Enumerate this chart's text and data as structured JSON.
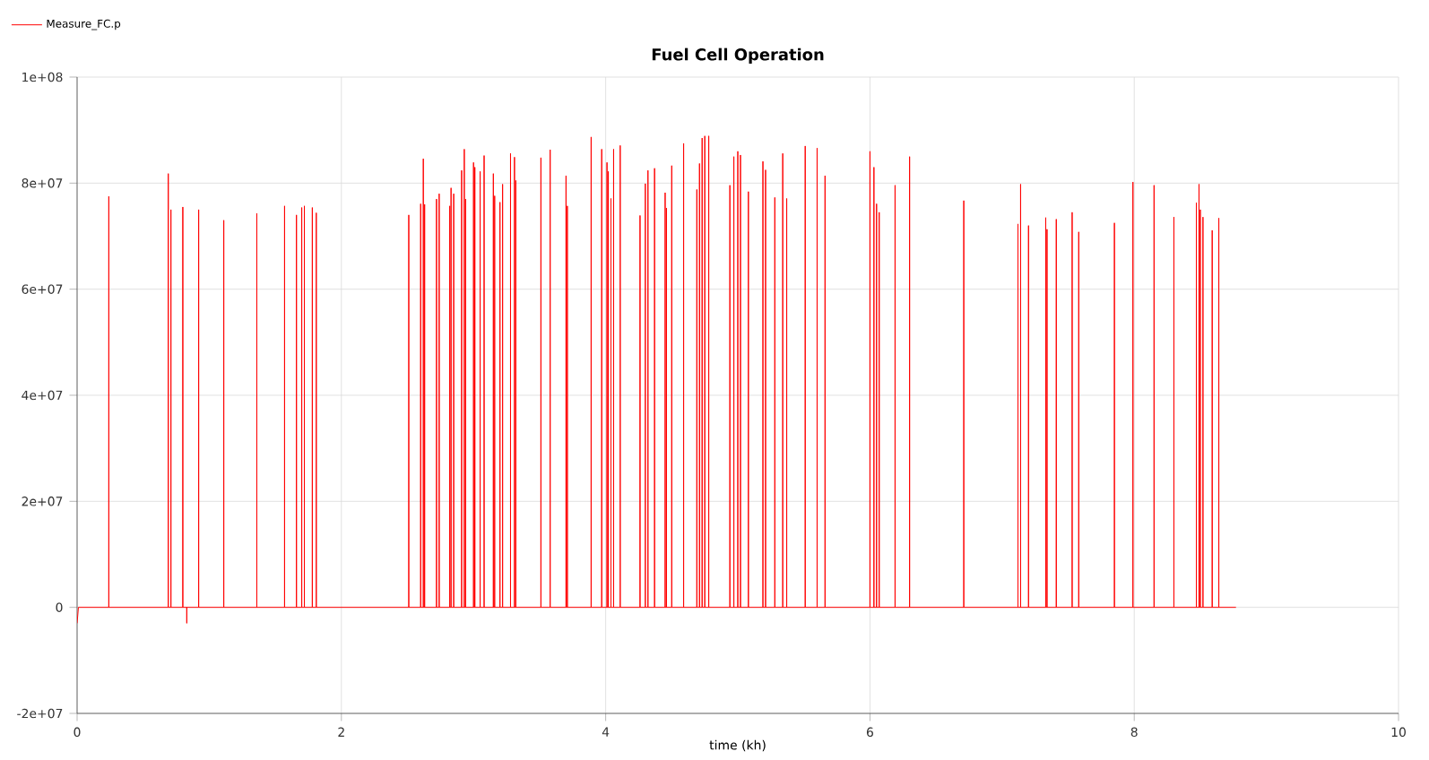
{
  "chart_data": {
    "type": "line",
    "title": "Fuel Cell Operation",
    "xlabel": "time (kh)",
    "xlim": [
      0,
      10
    ],
    "xticks": [
      0,
      2,
      4,
      6,
      8,
      10
    ],
    "ylim": [
      -20000000.0,
      100000000.0
    ],
    "yticks": [
      {
        "value": -20000000.0,
        "label": "-2e+07"
      },
      {
        "value": 0,
        "label": "0"
      },
      {
        "value": 20000000.0,
        "label": "2e+07"
      },
      {
        "value": 40000000.0,
        "label": "4e+07"
      },
      {
        "value": 60000000.0,
        "label": "6e+07"
      },
      {
        "value": 80000000.0,
        "label": "8e+07"
      },
      {
        "value": 100000000.0,
        "label": "1e+08"
      }
    ],
    "grid": true,
    "legend": "top left",
    "marker": "none",
    "line_style": "solid",
    "series": [
      {
        "name": "Measure_FC.p",
        "color": "#ff0000",
        "x": [
          0,
          0.01,
          0.24,
          0.24,
          0.24,
          0.69,
          0.69,
          0.69,
          0.71,
          0.71,
          0.71,
          0.8,
          0.8,
          0.8,
          0.83,
          0.83,
          0.83,
          0.92,
          0.92,
          0.92,
          1.11,
          1.11,
          1.11,
          1.36,
          1.36,
          1.36,
          1.57,
          1.57,
          1.57,
          1.66,
          1.66,
          1.66,
          1.7,
          1.7,
          1.7,
          1.72,
          1.72,
          1.72,
          1.78,
          1.78,
          1.78,
          1.81,
          1.81,
          1.81,
          2.51,
          2.51,
          2.51,
          2.6,
          2.6,
          2.6,
          2.62,
          2.62,
          2.62,
          2.63,
          2.63,
          2.63,
          2.72,
          2.72,
          2.72,
          2.74,
          2.74,
          2.74,
          2.82,
          2.82,
          2.82,
          2.83,
          2.83,
          2.83,
          2.85,
          2.85,
          2.85,
          2.91,
          2.91,
          2.91,
          2.93,
          2.93,
          2.93,
          2.94,
          2.94,
          2.94,
          3.0,
          3.0,
          3.0,
          3.01,
          3.01,
          3.01,
          3.05,
          3.05,
          3.05,
          3.08,
          3.08,
          3.08,
          3.15,
          3.15,
          3.15,
          3.16,
          3.16,
          3.16,
          3.2,
          3.2,
          3.2,
          3.22,
          3.22,
          3.22,
          3.28,
          3.28,
          3.28,
          3.31,
          3.31,
          3.31,
          3.32,
          3.32,
          3.32,
          3.51,
          3.51,
          3.51,
          3.58,
          3.58,
          3.58,
          3.7,
          3.7,
          3.7,
          3.71,
          3.71,
          3.71,
          3.89,
          3.89,
          3.89,
          3.97,
          3.97,
          3.97,
          4.01,
          4.01,
          4.01,
          4.02,
          4.02,
          4.02,
          4.04,
          4.04,
          4.04,
          4.06,
          4.06,
          4.06,
          4.11,
          4.11,
          4.11,
          4.26,
          4.26,
          4.26,
          4.3,
          4.3,
          4.3,
          4.32,
          4.32,
          4.32,
          4.37,
          4.37,
          4.37,
          4.45,
          4.45,
          4.45,
          4.46,
          4.46,
          4.46,
          4.5,
          4.5,
          4.5,
          4.59,
          4.59,
          4.59,
          4.69,
          4.69,
          4.69,
          4.71,
          4.71,
          4.71,
          4.73,
          4.73,
          4.73,
          4.75,
          4.75,
          4.75,
          4.78,
          4.78,
          4.78,
          4.94,
          4.94,
          4.94,
          4.97,
          4.97,
          4.97,
          5.0,
          5.0,
          5.0,
          5.02,
          5.02,
          5.02,
          5.08,
          5.08,
          5.08,
          5.19,
          5.19,
          5.19,
          5.21,
          5.21,
          5.21,
          5.28,
          5.28,
          5.28,
          5.34,
          5.34,
          5.34,
          5.37,
          5.37,
          5.37,
          5.51,
          5.51,
          5.51,
          5.6,
          5.6,
          5.6,
          5.66,
          5.66,
          5.66,
          6.0,
          6.0,
          6.0,
          6.03,
          6.03,
          6.03,
          6.05,
          6.05,
          6.05,
          6.07,
          6.07,
          6.07,
          6.19,
          6.19,
          6.19,
          6.3,
          6.3,
          6.3,
          6.71,
          6.71,
          6.71,
          7.12,
          7.12,
          7.12,
          7.14,
          7.14,
          7.14,
          7.2,
          7.2,
          7.2,
          7.33,
          7.33,
          7.33,
          7.34,
          7.34,
          7.34,
          7.41,
          7.41,
          7.41,
          7.53,
          7.53,
          7.53,
          7.58,
          7.58,
          7.58,
          7.85,
          7.85,
          7.85,
          7.99,
          7.99,
          7.99,
          8.15,
          8.15,
          8.15,
          8.3,
          8.3,
          8.3,
          8.47,
          8.47,
          8.47,
          8.49,
          8.49,
          8.49,
          8.5,
          8.5,
          8.5,
          8.52,
          8.52,
          8.52,
          8.59,
          8.59,
          8.59,
          8.64,
          8.64,
          8.64,
          8.77
        ],
        "values": [
          -3000000.0,
          0,
          0,
          77500000.0,
          0,
          0,
          81800000.0,
          0,
          0,
          75000000.0,
          0,
          0,
          75500000.0,
          0,
          0,
          -3000000.0,
          0,
          0,
          75000000.0,
          0,
          0,
          73000000.0,
          0,
          0,
          74300000.0,
          0,
          0,
          75700000.0,
          0,
          0,
          74000000.0,
          0,
          0,
          75400000.0,
          0,
          0,
          75700000.0,
          0,
          0,
          75400000.0,
          0,
          0,
          74400000.0,
          0,
          0,
          74000000.0,
          0,
          0,
          76100000.0,
          0,
          0,
          84600000.0,
          0,
          0,
          76000000.0,
          0,
          0,
          77000000.0,
          0,
          0,
          78000000.0,
          0,
          0,
          75700000.0,
          0,
          0,
          79100000.0,
          0,
          0,
          78000000.0,
          0,
          0,
          82400000.0,
          0,
          0,
          86400000.0,
          0,
          0,
          77000000.0,
          0,
          0,
          83900000.0,
          0,
          0,
          83000000.0,
          0,
          0,
          82200000.0,
          0,
          0,
          85200000.0,
          0,
          0,
          81800000.0,
          0,
          0,
          77600000.0,
          0,
          0,
          76400000.0,
          0,
          0,
          79800000.0,
          0,
          0,
          85600000.0,
          0,
          0,
          84900000.0,
          0,
          0,
          80500000.0,
          0,
          0,
          84800000.0,
          0,
          0,
          86300000.0,
          0,
          0,
          81400000.0,
          0,
          0,
          75700000.0,
          0,
          0,
          88700000.0,
          0,
          0,
          86400000.0,
          0,
          0,
          83900000.0,
          0,
          0,
          82200000.0,
          0,
          0,
          77100000.0,
          0,
          0,
          86400000.0,
          0,
          0,
          87100000.0,
          0,
          0,
          73900000.0,
          0,
          0,
          79900000.0,
          0,
          0,
          82400000.0,
          0,
          0,
          82800000.0,
          0,
          0,
          78200000.0,
          0,
          0,
          75300000.0,
          0,
          0,
          83300000.0,
          0,
          0,
          87500000.0,
          0,
          0,
          78800000.0,
          0,
          0,
          83700000.0,
          0,
          0,
          88500000.0,
          0,
          0,
          88900000.0,
          0,
          0,
          88900000.0,
          0,
          0,
          79600000.0,
          0,
          0,
          85000000.0,
          0,
          0,
          86000000.0,
          0,
          0,
          85300000.0,
          0,
          0,
          78400000.0,
          0,
          0,
          84100000.0,
          0,
          0,
          82500000.0,
          0,
          0,
          77300000.0,
          0,
          0,
          85600000.0,
          0,
          0,
          77100000.0,
          0,
          0,
          87000000.0,
          0,
          0,
          86600000.0,
          0,
          0,
          81400000.0,
          0,
          0,
          86000000.0,
          0,
          0,
          83000000.0,
          0,
          0,
          76100000.0,
          0,
          0,
          74500000.0,
          0,
          0,
          79600000.0,
          0,
          0,
          85000000.0,
          0,
          0,
          76700000.0,
          0,
          0,
          72300000.0,
          0,
          0,
          79800000.0,
          0,
          0,
          72000000.0,
          0,
          0,
          73500000.0,
          0,
          0,
          71300000.0,
          0,
          0,
          73200000.0,
          0,
          0,
          74500000.0,
          0,
          0,
          70800000.0,
          0,
          0,
          72500000.0,
          0,
          0,
          80200000.0,
          0,
          0,
          79600000.0,
          0,
          0,
          73600000.0,
          0,
          0,
          76300000.0,
          0,
          0,
          79800000.0,
          0,
          0,
          75000000.0,
          0,
          0,
          73600000.0,
          0,
          0,
          71100000.0,
          0,
          0,
          73400000.0,
          0,
          0
        ]
      }
    ]
  }
}
